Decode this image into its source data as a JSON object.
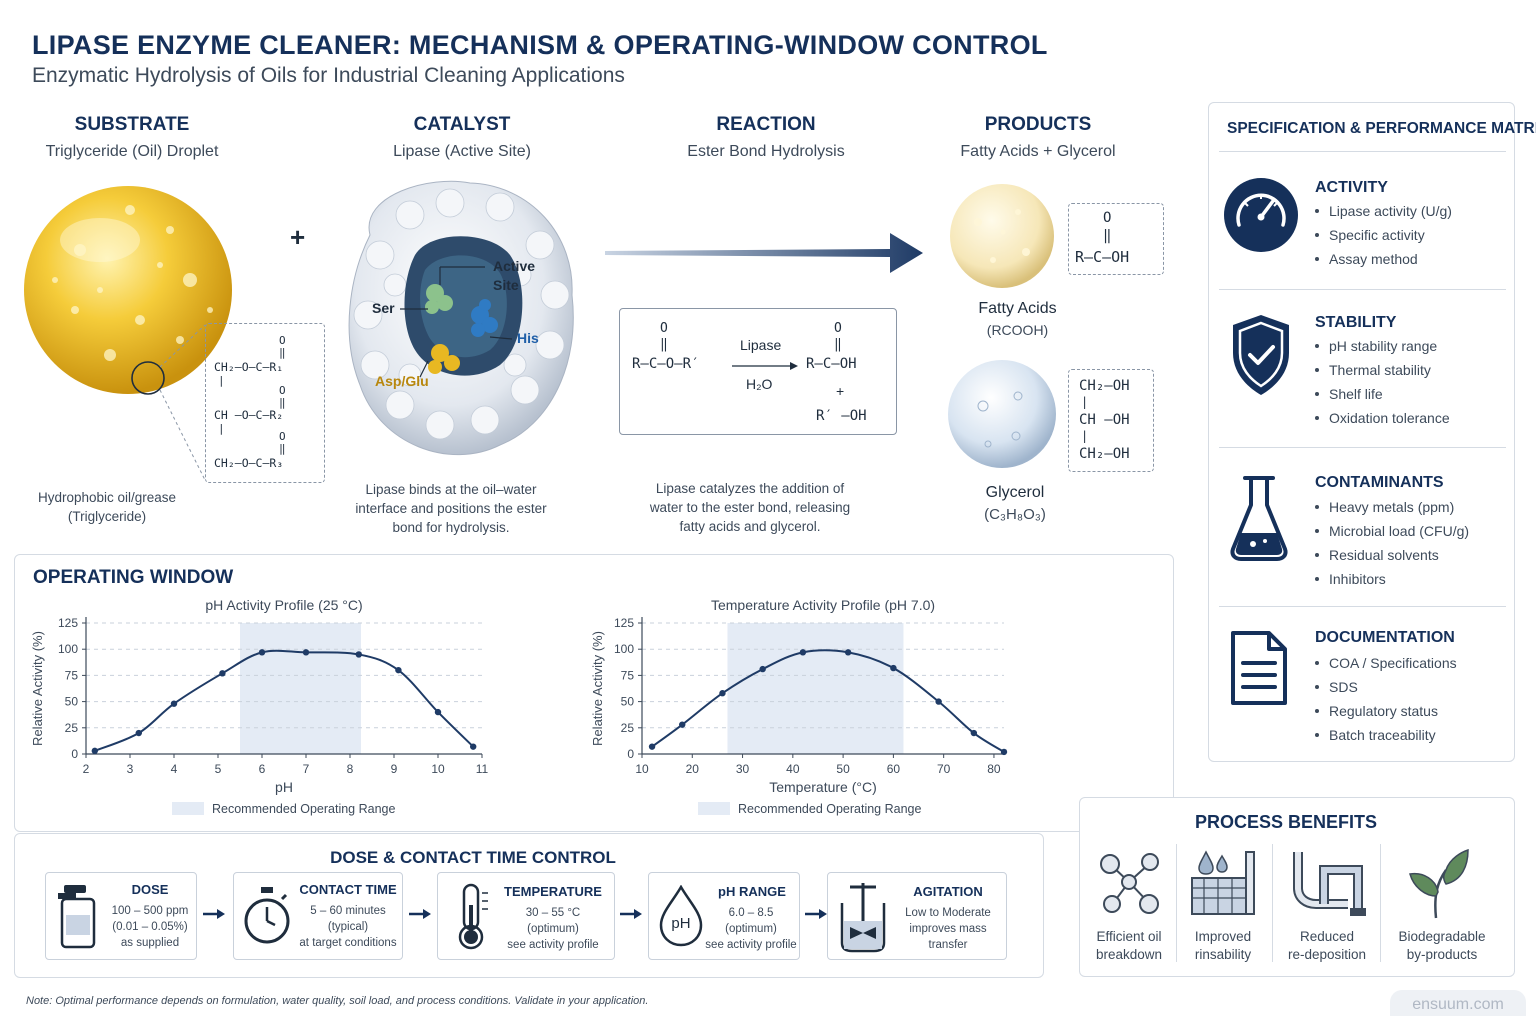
{
  "header": {
    "title": "LIPASE ENZYME CLEANER: MECHANISM & OPERATING-WINDOW CONTROL",
    "subtitle": "Enzymatic Hydrolysis of Oils for Industrial Cleaning Applications"
  },
  "mechanism": {
    "substrate": {
      "heading": "SUBSTRATE",
      "sub": "Triglyceride (Oil) Droplet",
      "caption": [
        "Hydrophobic oil/grease",
        "(Triglyceride)"
      ],
      "formula": {
        "o": "O",
        "dbl": "‖",
        "bar": "|",
        "rows": [
          "CH₂—O—C—R₁",
          "CH —O—C—R₂",
          "CH₂—O—C—R₃"
        ]
      }
    },
    "plus": "+",
    "catalyst": {
      "heading": "CATALYST",
      "sub": "Lipase (Active Site)",
      "labels": {
        "active": "Active",
        "site": "Site",
        "ser": "Ser",
        "his": "His",
        "asp": "Asp/Glu"
      },
      "caption": [
        "Lipase binds at the oil–water",
        "interface and positions the ester",
        "bond for hydrolysis."
      ]
    },
    "reaction": {
      "heading": "REACTION",
      "sub": "Ester Bond Hydrolysis",
      "enzyme": "Lipase",
      "water": "H₂O",
      "left": "R—C—O—R′",
      "right": "R—C—OH",
      "plus": "+",
      "alcohol": "R′ —OH",
      "o": "O",
      "dbl": "‖",
      "caption": [
        "Lipase catalyzes the addition of",
        "water to the ester bond, releasing",
        "fatty acids and glycerol."
      ]
    },
    "products": {
      "heading": "PRODUCTS",
      "sub": "Fatty Acids + Glycerol",
      "fatty": {
        "name": "Fatty Acids",
        "formula": "(RCOOH)",
        "o": "O",
        "dbl": "‖",
        "struct": "R—C—OH"
      },
      "glycerol": {
        "name": "Glycerol",
        "formula": "(C₃H₈O₃)",
        "rows": [
          "CH₂—OH",
          "CH —OH",
          "CH₂—OH"
        ],
        "bar": "|"
      }
    }
  },
  "spec": {
    "title": "SPECIFICATION & PERFORMANCE MATRIX",
    "sections": [
      {
        "icon": "gauge-icon",
        "heading": "ACTIVITY",
        "items": [
          "Lipase activity (U/g)",
          "Specific activity",
          "Assay method"
        ]
      },
      {
        "icon": "shield-check-icon",
        "heading": "STABILITY",
        "items": [
          "pH stability range",
          "Thermal stability",
          "Shelf life",
          "Oxidation tolerance"
        ]
      },
      {
        "icon": "flask-icon",
        "heading": "CONTAMINANTS",
        "items": [
          "Heavy metals (ppm)",
          "Microbial load (CFU/g)",
          "Residual solvents",
          "Inhibitors"
        ]
      },
      {
        "icon": "document-icon",
        "heading": "DOCUMENTATION",
        "items": [
          "COA / Specifications",
          "SDS",
          "Regulatory status",
          "Batch traceability"
        ]
      }
    ]
  },
  "operating": {
    "title": "OPERATING WINDOW",
    "legend": "Recommended Operating Range"
  },
  "chart_data": [
    {
      "type": "line",
      "title": "pH Activity Profile (25 °C)",
      "xlabel": "pH",
      "ylabel": "Relative Activity (%)",
      "x_ticks": [
        2,
        3,
        4,
        5,
        6,
        7,
        8,
        9,
        10,
        11
      ],
      "y_ticks": [
        0,
        25,
        50,
        75,
        100,
        125
      ],
      "xlim": [
        2,
        11
      ],
      "ylim": [
        0,
        125
      ],
      "recommended_range": [
        5.5,
        8.25
      ],
      "x": [
        2.2,
        3.2,
        4.0,
        5.1,
        6.0,
        7.0,
        8.2,
        9.1,
        10.0,
        10.8
      ],
      "y": [
        3,
        20,
        48,
        77,
        97,
        97,
        95,
        80,
        40,
        7
      ]
    },
    {
      "type": "line",
      "title": "Temperature Activity Profile (pH 7.0)",
      "xlabel": "Temperature (°C)",
      "ylabel": "Relative Activity (%)",
      "x_ticks": [
        10,
        20,
        30,
        40,
        50,
        60,
        70,
        80
      ],
      "y_ticks": [
        0,
        25,
        50,
        75,
        100,
        125
      ],
      "xlim": [
        10,
        82
      ],
      "ylim": [
        0,
        125
      ],
      "recommended_range": [
        27,
        62
      ],
      "x": [
        12,
        18,
        26,
        34,
        42,
        51,
        60,
        69,
        76,
        82
      ],
      "y": [
        7,
        28,
        58,
        81,
        97,
        97,
        82,
        50,
        20,
        2
      ]
    }
  ],
  "dose": {
    "title": "DOSE & CONTACT TIME CONTROL",
    "steps": [
      {
        "icon": "container-icon",
        "title": "DOSE",
        "lines": [
          "100 – 500 ppm",
          "(0.01 – 0.05%)",
          "as supplied"
        ]
      },
      {
        "icon": "stopwatch-icon",
        "title": "CONTACT TIME",
        "lines": [
          "5 – 60 minutes",
          "(typical)",
          "at target conditions"
        ]
      },
      {
        "icon": "thermometer-icon",
        "title": "TEMPERATURE",
        "lines": [
          "30 – 55 °C",
          "(optimum)",
          "see activity profile"
        ]
      },
      {
        "icon": "ph-drop-icon",
        "title": "pH RANGE",
        "lines": [
          "6.0 – 8.5",
          "(optimum)",
          "see activity profile"
        ],
        "icon_text": "pH"
      },
      {
        "icon": "agitator-icon",
        "title": "AGITATION",
        "lines": [
          "Low to Moderate",
          "improves mass",
          "transfer"
        ]
      }
    ]
  },
  "benefits": {
    "title": "PROCESS BENEFITS",
    "items": [
      {
        "icon": "molecules-icon",
        "label": [
          "Efficient oil",
          "breakdown"
        ]
      },
      {
        "icon": "rinse-icon",
        "label": [
          "Improved",
          "rinsability"
        ]
      },
      {
        "icon": "pipes-icon",
        "label": [
          "Reduced",
          "re-deposition"
        ]
      },
      {
        "icon": "leaf-icon",
        "label": [
          "Biodegradable",
          "by-products"
        ]
      }
    ]
  },
  "footer": {
    "note": "Note: Optimal performance depends on formulation, water quality, soil load, and process conditions. Validate in your application.",
    "watermark": "ensuum.com"
  }
}
